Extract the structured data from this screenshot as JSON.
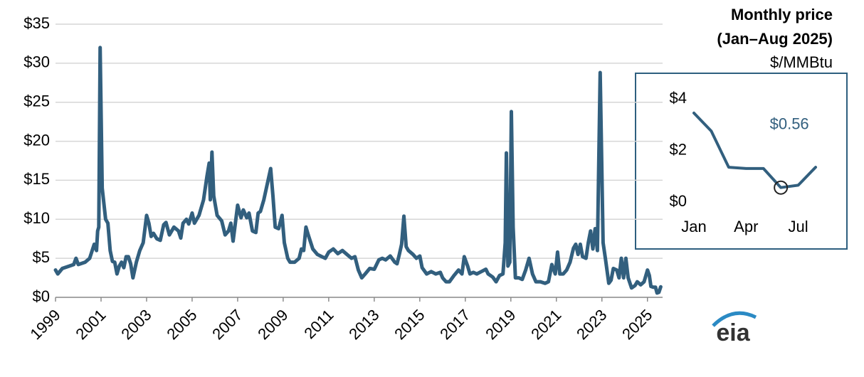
{
  "chart_data": [
    {
      "type": "line",
      "color": "#325f7e",
      "grid": true,
      "xlim": [
        1999,
        2025.6
      ],
      "xticks": [
        1999,
        2001,
        2003,
        2005,
        2007,
        2009,
        2011,
        2013,
        2015,
        2017,
        2019,
        2021,
        2023,
        2025
      ],
      "ylim": [
        0,
        35
      ],
      "yticks": [
        {
          "value": 0,
          "label": "$0"
        },
        {
          "value": 5,
          "label": "$5"
        },
        {
          "value": 10,
          "label": "$10"
        },
        {
          "value": 15,
          "label": "$15"
        },
        {
          "value": 20,
          "label": "$20"
        },
        {
          "value": 25,
          "label": "$25"
        },
        {
          "value": 30,
          "label": "$30"
        },
        {
          "value": 35,
          "label": "$35"
        }
      ],
      "x": [
        1999.0,
        1999.1,
        1999.3,
        1999.6,
        1999.8,
        1999.9,
        2000.0,
        2000.3,
        2000.5,
        2000.7,
        2000.8,
        2000.85,
        2000.9,
        2000.96,
        2001.05,
        2001.2,
        2001.3,
        2001.4,
        2001.5,
        2001.6,
        2001.7,
        2001.8,
        2001.9,
        2002.0,
        2002.1,
        2002.2,
        2002.3,
        2002.4,
        2002.55,
        2002.7,
        2002.85,
        2003.0,
        2003.1,
        2003.2,
        2003.3,
        2003.45,
        2003.6,
        2003.75,
        2003.85,
        2004.0,
        2004.2,
        2004.4,
        2004.5,
        2004.6,
        2004.75,
        2004.85,
        2005.0,
        2005.1,
        2005.3,
        2005.5,
        2005.65,
        2005.75,
        2005.8,
        2005.87,
        2005.95,
        2006.1,
        2006.3,
        2006.45,
        2006.6,
        2006.7,
        2006.8,
        2006.9,
        2007.0,
        2007.15,
        2007.25,
        2007.4,
        2007.5,
        2007.65,
        2007.8,
        2007.9,
        2008.0,
        2008.15,
        2008.3,
        2008.45,
        2008.55,
        2008.65,
        2008.8,
        2008.95,
        2009.05,
        2009.2,
        2009.3,
        2009.5,
        2009.7,
        2009.8,
        2009.9,
        2010.0,
        2010.1,
        2010.3,
        2010.5,
        2010.7,
        2010.85,
        2011.0,
        2011.2,
        2011.4,
        2011.6,
        2011.8,
        2012.0,
        2012.15,
        2012.3,
        2012.45,
        2012.6,
        2012.8,
        2013.0,
        2013.2,
        2013.35,
        2013.5,
        2013.7,
        2013.9,
        2014.0,
        2014.1,
        2014.2,
        2014.3,
        2014.4,
        2014.5,
        2014.7,
        2014.85,
        2015.0,
        2015.1,
        2015.3,
        2015.5,
        2015.7,
        2015.9,
        2016.0,
        2016.15,
        2016.3,
        2016.5,
        2016.7,
        2016.85,
        2016.95,
        2017.1,
        2017.2,
        2017.35,
        2017.5,
        2017.7,
        2017.9,
        2018.0,
        2018.2,
        2018.35,
        2018.5,
        2018.65,
        2018.75,
        2018.8,
        2018.87,
        2018.95,
        2019.02,
        2019.1,
        2019.2,
        2019.35,
        2019.5,
        2019.65,
        2019.8,
        2019.95,
        2020.1,
        2020.3,
        2020.5,
        2020.65,
        2020.8,
        2020.95,
        2021.05,
        2021.15,
        2021.3,
        2021.45,
        2021.6,
        2021.75,
        2021.85,
        2021.95,
        2022.05,
        2022.15,
        2022.3,
        2022.4,
        2022.5,
        2022.6,
        2022.7,
        2022.8,
        2022.92,
        2023.05,
        2023.15,
        2023.3,
        2023.4,
        2023.5,
        2023.65,
        2023.75,
        2023.85,
        2023.95,
        2024.05,
        2024.15,
        2024.3,
        2024.45,
        2024.55,
        2024.7,
        2024.85,
        2025.0,
        2025.08,
        2025.15,
        2025.25,
        2025.35,
        2025.42,
        2025.5,
        2025.58
      ],
      "values": [
        3.5,
        3.0,
        3.7,
        4.0,
        4.2,
        5.0,
        4.2,
        4.5,
        5.0,
        6.8,
        6.0,
        8.5,
        9.0,
        32.0,
        14.0,
        10.0,
        9.5,
        6.0,
        4.6,
        4.5,
        3.0,
        4.0,
        4.5,
        3.8,
        5.2,
        5.2,
        4.3,
        2.5,
        4.5,
        6.0,
        7.0,
        10.5,
        9.5,
        7.8,
        8.2,
        7.5,
        7.3,
        9.3,
        9.6,
        8.0,
        9.0,
        8.5,
        7.6,
        9.5,
        10.0,
        9.4,
        10.8,
        9.5,
        10.5,
        12.5,
        15.5,
        17.2,
        12.5,
        18.6,
        13.0,
        10.5,
        9.8,
        8.0,
        8.5,
        9.5,
        7.2,
        9.5,
        11.8,
        10.2,
        11.2,
        10.2,
        10.8,
        8.5,
        8.3,
        10.8,
        11.0,
        12.5,
        14.5,
        16.5,
        13.0,
        9.0,
        8.8,
        10.5,
        7.0,
        5.0,
        4.5,
        4.5,
        5.0,
        6.2,
        6.0,
        9.0,
        8.0,
        6.2,
        5.5,
        5.2,
        5.0,
        5.8,
        6.2,
        5.6,
        6.0,
        5.5,
        5.0,
        5.2,
        3.5,
        2.5,
        3.0,
        3.7,
        3.6,
        4.8,
        5.0,
        4.8,
        5.3,
        4.5,
        4.3,
        5.5,
        6.8,
        10.4,
        6.5,
        6.0,
        5.5,
        5.0,
        5.3,
        3.8,
        3.0,
        3.3,
        3.0,
        3.2,
        2.5,
        2.0,
        2.0,
        2.8,
        3.5,
        3.0,
        5.2,
        4.0,
        3.0,
        3.2,
        3.0,
        3.3,
        3.6,
        3.0,
        2.6,
        2.0,
        2.8,
        3.0,
        7.0,
        18.5,
        4.0,
        4.5,
        23.8,
        9.0,
        2.5,
        2.5,
        2.3,
        3.5,
        5.0,
        3.0,
        2.0,
        2.0,
        1.8,
        2.0,
        4.2,
        3.0,
        5.8,
        3.0,
        3.0,
        3.5,
        4.5,
        6.3,
        6.8,
        5.5,
        6.8,
        5.2,
        5.0,
        7.0,
        8.5,
        6.2,
        8.8,
        6.0,
        28.8,
        7.0,
        5.0,
        1.8,
        2.2,
        3.7,
        3.5,
        2.5,
        5.0,
        2.5,
        5.0,
        2.5,
        1.2,
        1.5,
        2.0,
        1.6,
        2.0,
        3.5,
        2.8,
        1.4,
        1.3,
        1.3,
        0.56,
        0.65,
        1.35
      ]
    },
    {
      "type": "line",
      "color": "#325f7e",
      "grid": false,
      "title": "Monthly price",
      "subtitle": "(Jan–Aug 2025)",
      "y_label": "$/MMBtu",
      "annotation": "$0.56",
      "categories": [
        "Jan",
        null,
        null,
        "Apr",
        null,
        null,
        "Jul",
        null
      ],
      "values": [
        3.45,
        2.75,
        1.35,
        1.3,
        1.3,
        0.56,
        0.65,
        1.35
      ],
      "ylim": [
        0,
        4
      ],
      "yticks": [
        {
          "value": 0,
          "label": "$0"
        },
        {
          "value": 2,
          "label": "$2"
        },
        {
          "value": 4,
          "label": "$4"
        }
      ]
    }
  ],
  "logo": "eia"
}
